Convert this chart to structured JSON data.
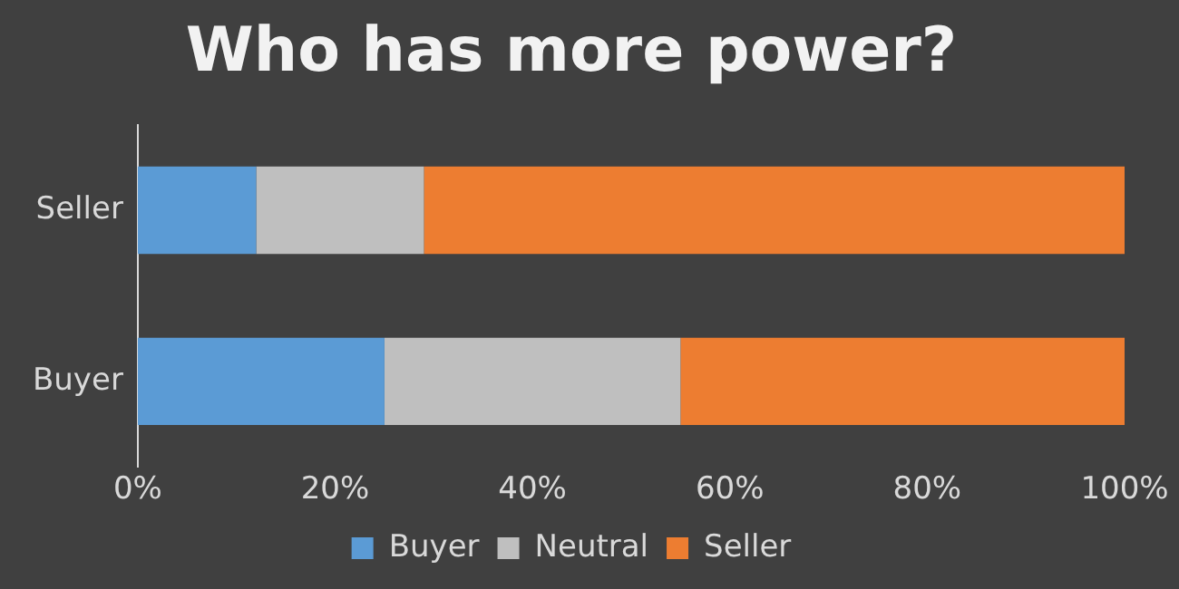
{
  "chart_data": {
    "type": "bar",
    "title": "Who has more power?",
    "orientation": "horizontal",
    "stacked": true,
    "categories": [
      "Seller",
      "Buyer"
    ],
    "series": [
      {
        "name": "Buyer",
        "color": "#5b9bd5",
        "values": [
          12,
          25
        ]
      },
      {
        "name": "Neutral",
        "color": "#bfbfbf",
        "values": [
          17,
          30
        ]
      },
      {
        "name": "Seller",
        "color": "#ed7d31",
        "values": [
          71,
          45
        ]
      }
    ],
    "xlim": [
      0,
      100
    ],
    "xticks": [
      {
        "value": 0,
        "label": "0%"
      },
      {
        "value": 20,
        "label": "20%"
      },
      {
        "value": 40,
        "label": "40%"
      },
      {
        "value": 60,
        "label": "60%"
      },
      {
        "value": 80,
        "label": "80%"
      },
      {
        "value": 100,
        "label": "100%"
      }
    ],
    "grid": false,
    "legend": "bottom"
  }
}
